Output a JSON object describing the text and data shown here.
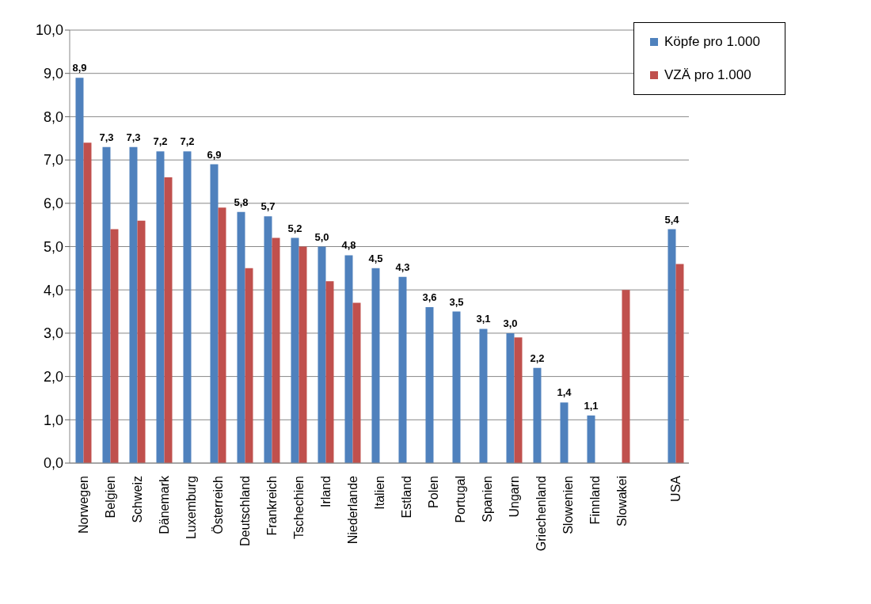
{
  "chart_data": {
    "type": "bar",
    "categories": [
      "Norwegen",
      "Belgien",
      "Schweiz",
      "Dänemark",
      "Luxemburg",
      "Österreich",
      "Deutschland",
      "Frankreich",
      "Tschechien",
      "Irland",
      "Niederlande",
      "Italien",
      "Estland",
      "Polen",
      "Portugal",
      "Spanien",
      "Ungarn",
      "Griechenland",
      "Slowenien",
      "Finnland",
      "Slowakei",
      null,
      "USA"
    ],
    "series": [
      {
        "name": "Köpfe pro 1.000",
        "color": "#4f81bd",
        "values": [
          8.9,
          7.3,
          7.3,
          7.2,
          7.2,
          6.9,
          5.8,
          5.7,
          5.2,
          5.0,
          4.8,
          4.5,
          4.3,
          3.6,
          3.5,
          3.1,
          3.0,
          2.2,
          1.4,
          1.1,
          null,
          null,
          5.4
        ],
        "value_labels": [
          "8,9",
          "7,3",
          "7,3",
          "7,2",
          "7,2",
          "6,9",
          "5,8",
          "5,7",
          "5,2",
          "5,0",
          "4,8",
          "4,5",
          "4,3",
          "3,6",
          "3,5",
          "3,1",
          "3,0",
          "2,2",
          "1,4",
          "1,1",
          null,
          null,
          "5,4"
        ]
      },
      {
        "name": "VZÄ pro 1.000",
        "color": "#c0504d",
        "values": [
          7.4,
          5.4,
          5.6,
          6.6,
          null,
          5.9,
          4.5,
          5.2,
          5.0,
          4.2,
          3.7,
          null,
          null,
          null,
          null,
          null,
          2.9,
          null,
          null,
          null,
          4.0,
          null,
          4.6
        ]
      }
    ],
    "ylim": [
      0,
      10
    ],
    "yticks": [
      {
        "value": 0,
        "label": "0,0"
      },
      {
        "value": 1,
        "label": "1,0"
      },
      {
        "value": 2,
        "label": "2,0"
      },
      {
        "value": 3,
        "label": "3,0"
      },
      {
        "value": 4,
        "label": "4,0"
      },
      {
        "value": 5,
        "label": "5,0"
      },
      {
        "value": 6,
        "label": "6,0"
      },
      {
        "value": 7,
        "label": "7,0"
      },
      {
        "value": 8,
        "label": "8,0"
      },
      {
        "value": 9,
        "label": "9,0"
      },
      {
        "value": 10,
        "label": "10,0"
      }
    ],
    "grid": "y",
    "legend": "top right"
  }
}
